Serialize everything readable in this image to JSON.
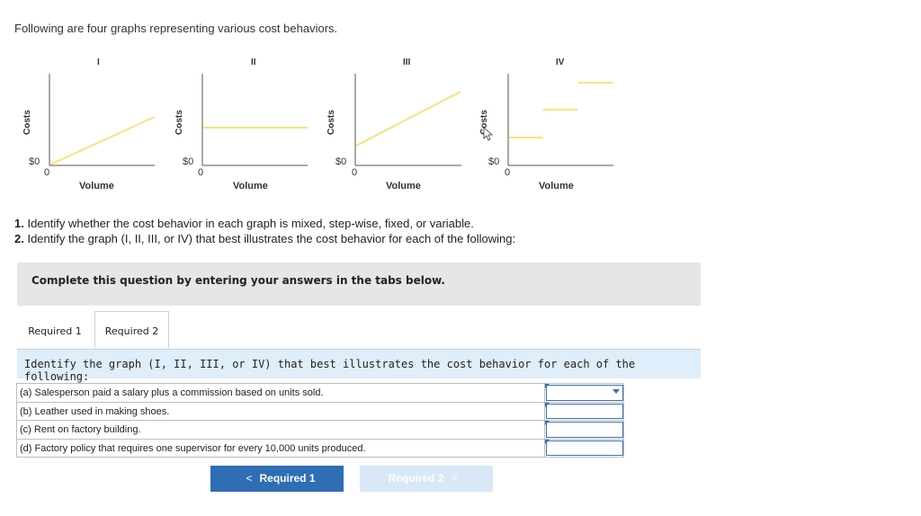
{
  "intro": "Following are four graphs representing various cost behaviors.",
  "graphs": [
    {
      "roman": "I",
      "ylabel": "Costs",
      "origin_dollar": "$0",
      "origin_zero": "0",
      "xlabel": "Volume",
      "behavior": "variable"
    },
    {
      "roman": "II",
      "ylabel": "Costs",
      "origin_dollar": "$0",
      "origin_zero": "0",
      "xlabel": "Volume",
      "behavior": "fixed"
    },
    {
      "roman": "III",
      "ylabel": "Costs",
      "origin_dollar": "$0",
      "origin_zero": "0",
      "xlabel": "Volume",
      "behavior": "mixed"
    },
    {
      "roman": "IV",
      "ylabel": "Costs",
      "origin_dollar": "$0",
      "origin_zero": "0",
      "xlabel": "Volume",
      "behavior": "step-wise"
    }
  ],
  "line_color": "#f7e27e",
  "instructions": {
    "line1_num": "1.",
    "line1_text": " Identify whether the cost behavior in each graph is mixed, step-wise, fixed, or variable.",
    "line2_num": "2.",
    "line2_text": " Identify the graph (I, II, III, or IV) that best illustrates the cost behavior for each of the following:"
  },
  "banner": "Complete this question by entering your answers in the tabs below.",
  "tabs": [
    {
      "label": "Required 1",
      "active": false
    },
    {
      "label": "Required 2",
      "active": true
    }
  ],
  "question": "Identify the graph (I, II, III, or IV) that best illustrates the cost behavior for each of the following:",
  "rows": [
    {
      "desc": "(a) Salesperson paid a salary plus a commission based on units sold.",
      "value": ""
    },
    {
      "desc": "(b) Leather used in making shoes.",
      "value": ""
    },
    {
      "desc": "(c) Rent on factory building.",
      "value": ""
    },
    {
      "desc": "(d) Factory policy that requires one supervisor for every 10,000 units produced.",
      "value": ""
    }
  ],
  "nav": {
    "prev_label": "Required 1",
    "prev_chevron": "<",
    "next_label": "Required 2",
    "next_chevron": ">"
  },
  "colors": {
    "accent": "#2f6db5",
    "tab_bar": "#deeefa",
    "banner": "#e6e6e6"
  }
}
